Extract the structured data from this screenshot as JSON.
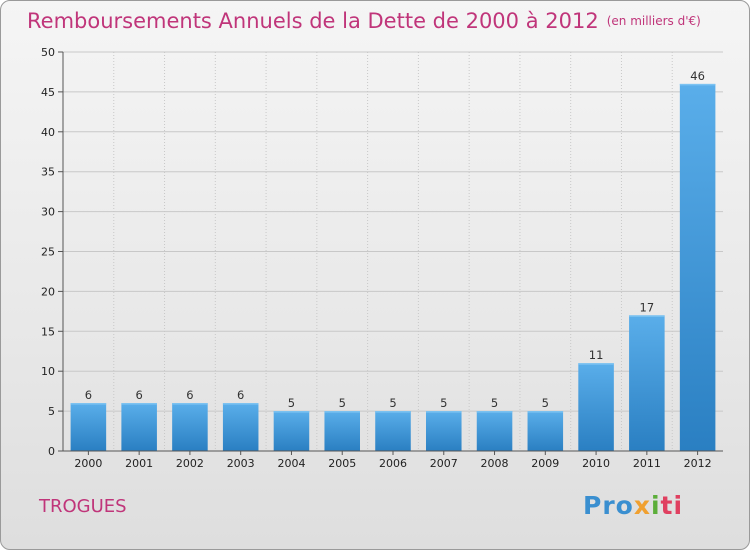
{
  "chart_data": {
    "type": "bar",
    "title": "Remboursements Annuels de la Dette de 2000 à 2012",
    "unit": "(en milliers d'€)",
    "categories": [
      "2000",
      "2001",
      "2002",
      "2003",
      "2004",
      "2005",
      "2006",
      "2007",
      "2008",
      "2009",
      "2010",
      "2011",
      "2012"
    ],
    "values": [
      6,
      6,
      6,
      6,
      5,
      5,
      5,
      5,
      5,
      5,
      11,
      17,
      46
    ],
    "ylim": [
      0,
      50
    ],
    "yticks": [
      0,
      5,
      10,
      15,
      20,
      25,
      30,
      35,
      40,
      45,
      50
    ],
    "grid": true,
    "xlabel": "",
    "ylabel": "",
    "colors": {
      "bar_top": "#5aaeea",
      "bar_bottom": "#2a7fc2",
      "grid": "#c8c8c8",
      "axis": "#555555"
    }
  },
  "commune": "TROGUES",
  "logo": {
    "p1": "Pro",
    "p2": "x",
    "p3": "i",
    "p4": "ti"
  }
}
